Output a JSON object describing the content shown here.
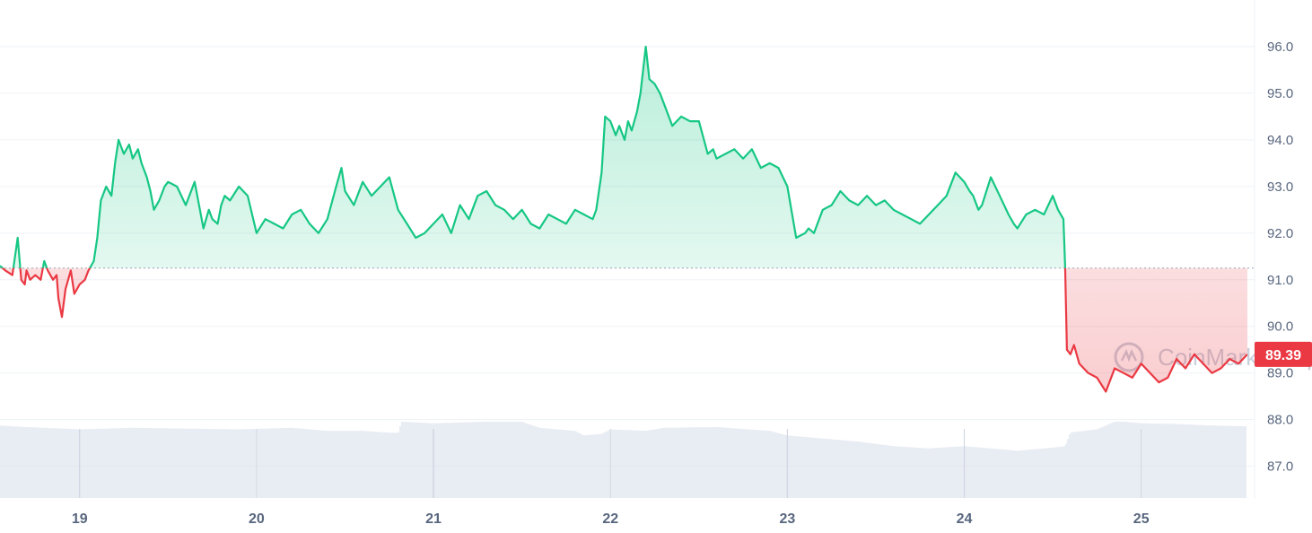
{
  "chart_data": {
    "type": "line",
    "title": "",
    "xlabel": "",
    "ylabel": "",
    "watermark": "CoinMarketCap",
    "baseline_value": 91.25,
    "current_price_label": "89.39",
    "ylim": [
      86.3,
      97.0
    ],
    "yticks": [
      87.0,
      88.0,
      89.0,
      90.0,
      91.0,
      92.0,
      93.0,
      94.0,
      95.0,
      96.0
    ],
    "ytick_labels": [
      "87.0",
      "88.0",
      "89.0",
      "90.0",
      "91.0",
      "92.0",
      "93.0",
      "94.0",
      "95.0",
      "96.0"
    ],
    "x_day_range": [
      18.55,
      25.6
    ],
    "xticks": [
      19,
      20,
      21,
      22,
      23,
      24,
      25
    ],
    "xtick_labels": [
      "19",
      "20",
      "21",
      "22",
      "23",
      "24",
      "25"
    ],
    "colors": {
      "above": "#16c784",
      "below": "#ea3943",
      "volume": "#dfe3ee",
      "grid": "#eff2f5",
      "baseline": "#9aa3b3",
      "label_bg": "#ea3943"
    },
    "series": [
      {
        "x": [
          18.55,
          18.58,
          18.62,
          18.65,
          18.67,
          18.69,
          18.7,
          18.72,
          18.75,
          18.78,
          18.8,
          18.82,
          18.85,
          18.87,
          18.88,
          18.9,
          18.92,
          18.95,
          18.97,
          19.0,
          19.03,
          19.05,
          19.08,
          19.1,
          19.12,
          19.15,
          19.18,
          19.2,
          19.22,
          19.25,
          19.28,
          19.3,
          19.33,
          19.35,
          19.38,
          19.4,
          19.42,
          19.45,
          19.48,
          19.5,
          19.55,
          19.6,
          19.65,
          19.7,
          19.73,
          19.75,
          19.78,
          19.8,
          19.82,
          19.85,
          19.9,
          19.95,
          20.0,
          20.05,
          20.1,
          20.15,
          20.2,
          20.25,
          20.3,
          20.35,
          20.4,
          20.45,
          20.48,
          20.5,
          20.55,
          20.6,
          20.65,
          20.7,
          20.75,
          20.8,
          20.85,
          20.9,
          20.95,
          21.0,
          21.05,
          21.1,
          21.15,
          21.2,
          21.25,
          21.3,
          21.35,
          21.4,
          21.45,
          21.5,
          21.55,
          21.6,
          21.65,
          21.7,
          21.75,
          21.8,
          21.85,
          21.9,
          21.92,
          21.95,
          21.97,
          22.0,
          22.03,
          22.05,
          22.08,
          22.1,
          22.12,
          22.15,
          22.17,
          22.2,
          22.22,
          22.25,
          22.28,
          22.3,
          22.35,
          22.4,
          22.45,
          22.5,
          22.55,
          22.58,
          22.6,
          22.65,
          22.7,
          22.75,
          22.8,
          22.85,
          22.9,
          22.95,
          23.0,
          23.05,
          23.1,
          23.12,
          23.15,
          23.2,
          23.25,
          23.3,
          23.35,
          23.4,
          23.45,
          23.5,
          23.55,
          23.6,
          23.65,
          23.7,
          23.75,
          23.8,
          23.85,
          23.9,
          23.95,
          24.0,
          24.03,
          24.05,
          24.08,
          24.1,
          24.15,
          24.2,
          24.25,
          24.28,
          24.3,
          24.35,
          24.4,
          24.45,
          24.5,
          24.53,
          24.56,
          24.57,
          24.58,
          24.6,
          24.62,
          24.65,
          24.7,
          24.75,
          24.8,
          24.85,
          24.9,
          24.95,
          25.0,
          25.05,
          25.1,
          25.15,
          25.2,
          25.25,
          25.3,
          25.35,
          25.4,
          25.45,
          25.5,
          25.55,
          25.6
        ],
        "values": [
          91.3,
          91.2,
          91.1,
          91.9,
          91.0,
          90.9,
          91.2,
          91.0,
          91.1,
          91.0,
          91.4,
          91.2,
          91.0,
          91.1,
          90.6,
          90.2,
          90.8,
          91.2,
          90.7,
          90.9,
          91.0,
          91.2,
          91.4,
          91.9,
          92.7,
          93.0,
          92.8,
          93.5,
          94.0,
          93.7,
          93.9,
          93.6,
          93.8,
          93.5,
          93.2,
          92.9,
          92.5,
          92.7,
          93.0,
          93.1,
          93.0,
          92.6,
          93.1,
          92.1,
          92.5,
          92.3,
          92.2,
          92.6,
          92.8,
          92.7,
          93.0,
          92.8,
          92.0,
          92.3,
          92.2,
          92.1,
          92.4,
          92.5,
          92.2,
          92.0,
          92.3,
          93.0,
          93.4,
          92.9,
          92.6,
          93.1,
          92.8,
          93.0,
          93.2,
          92.5,
          92.2,
          91.9,
          92.0,
          92.2,
          92.4,
          92.0,
          92.6,
          92.3,
          92.8,
          92.9,
          92.6,
          92.5,
          92.3,
          92.5,
          92.2,
          92.1,
          92.4,
          92.3,
          92.2,
          92.5,
          92.4,
          92.3,
          92.5,
          93.3,
          94.5,
          94.4,
          94.1,
          94.3,
          94.0,
          94.4,
          94.2,
          94.6,
          95.0,
          96.0,
          95.3,
          95.2,
          95.0,
          94.8,
          94.3,
          94.5,
          94.4,
          94.4,
          93.7,
          93.8,
          93.6,
          93.7,
          93.8,
          93.6,
          93.8,
          93.4,
          93.5,
          93.4,
          93.0,
          91.9,
          92.0,
          92.1,
          92.0,
          92.5,
          92.6,
          92.9,
          92.7,
          92.6,
          92.8,
          92.6,
          92.7,
          92.5,
          92.4,
          92.3,
          92.2,
          92.4,
          92.6,
          92.8,
          93.3,
          93.1,
          92.9,
          92.8,
          92.5,
          92.6,
          93.2,
          92.8,
          92.4,
          92.2,
          92.1,
          92.4,
          92.5,
          92.4,
          92.8,
          92.5,
          92.3,
          91.3,
          89.5,
          89.4,
          89.6,
          89.2,
          89.0,
          88.9,
          88.6,
          89.1,
          89.0,
          88.9,
          89.2,
          89.0,
          88.8,
          88.9,
          89.3,
          89.1,
          89.4,
          89.2,
          89.0,
          89.1,
          89.3,
          89.2,
          89.4
        ]
      }
    ],
    "volume": {
      "x": [
        18.55,
        18.7,
        19.0,
        19.3,
        19.6,
        19.9,
        20.2,
        20.4,
        20.6,
        20.8,
        20.82,
        21.0,
        21.3,
        21.5,
        21.6,
        21.8,
        21.85,
        21.95,
        22.0,
        22.2,
        22.3,
        22.6,
        22.9,
        23.0,
        23.1,
        23.3,
        23.4,
        23.6,
        23.8,
        24.0,
        24.2,
        24.3,
        24.4,
        24.5,
        24.57,
        24.6,
        24.75,
        24.85,
        24.9,
        25.0,
        25.2,
        25.4,
        25.6
      ],
      "values": [
        0.95,
        0.93,
        0.9,
        0.92,
        0.91,
        0.9,
        0.92,
        0.88,
        0.88,
        0.85,
        1.0,
        0.98,
        1.0,
        1.0,
        0.92,
        0.88,
        0.82,
        0.84,
        0.9,
        0.88,
        0.92,
        0.93,
        0.88,
        0.82,
        0.8,
        0.76,
        0.74,
        0.68,
        0.65,
        0.68,
        0.64,
        0.62,
        0.64,
        0.66,
        0.68,
        0.86,
        0.9,
        1.0,
        1.0,
        0.98,
        0.97,
        0.95,
        0.94
      ]
    }
  }
}
